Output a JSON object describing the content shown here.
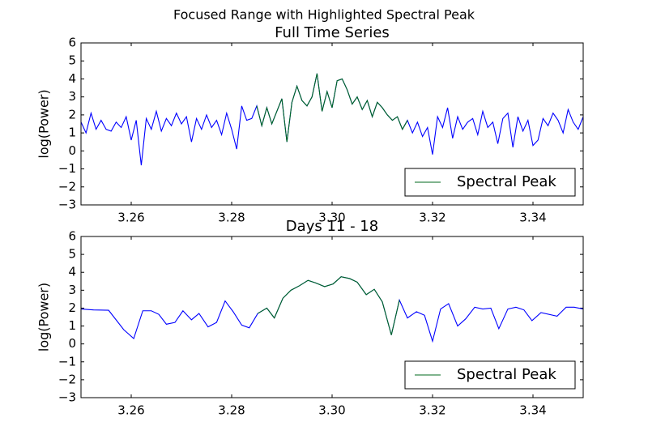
{
  "title": "Focused Range with Highlighted Spectral Peak",
  "chart_data": [
    {
      "type": "line",
      "title": "Full Time Series",
      "y_label": "log(Power)",
      "x": [
        3.25,
        3.251,
        3.252,
        3.253,
        3.254,
        3.255,
        3.256,
        3.257,
        3.258,
        3.259,
        3.26,
        3.261,
        3.262,
        3.263,
        3.264,
        3.265,
        3.266,
        3.267,
        3.268,
        3.269,
        3.27,
        3.271,
        3.272,
        3.273,
        3.274,
        3.275,
        3.276,
        3.277,
        3.278,
        3.279,
        3.28,
        3.281,
        3.282,
        3.283,
        3.284,
        3.285,
        3.286,
        3.287,
        3.288,
        3.289,
        3.29,
        3.291,
        3.292,
        3.293,
        3.294,
        3.295,
        3.296,
        3.297,
        3.298,
        3.299,
        3.3,
        3.301,
        3.302,
        3.303,
        3.304,
        3.305,
        3.306,
        3.307,
        3.308,
        3.309,
        3.31,
        3.311,
        3.312,
        3.313,
        3.314,
        3.315,
        3.316,
        3.317,
        3.318,
        3.319,
        3.32,
        3.321,
        3.322,
        3.323,
        3.324,
        3.325,
        3.326,
        3.327,
        3.328,
        3.329,
        3.33,
        3.331,
        3.332,
        3.333,
        3.334,
        3.335,
        3.336,
        3.337,
        3.338,
        3.339,
        3.34,
        3.341,
        3.342,
        3.343,
        3.344,
        3.345,
        3.346,
        3.347,
        3.348,
        3.349,
        3.35
      ],
      "series": [
        {
          "color": "#0000ff",
          "values": [
            1.6,
            1.0,
            2.1,
            1.2,
            1.7,
            1.2,
            1.1,
            1.6,
            1.3,
            1.9,
            0.6,
            1.7,
            -0.8,
            1.8,
            1.2,
            2.2,
            1.1,
            1.8,
            1.4,
            2.1,
            1.5,
            1.9,
            0.5,
            1.8,
            1.2,
            2.0,
            1.3,
            1.7,
            0.9,
            2.1,
            1.2,
            0.1,
            2.5,
            1.7,
            1.8,
            2.5,
            1.4,
            2.4,
            1.5,
            2.2,
            2.9,
            0.5,
            2.7,
            3.6,
            2.8,
            2.5,
            3.0,
            4.3,
            2.2,
            3.3,
            2.4,
            3.9,
            4.0,
            3.4,
            2.6,
            3.0,
            2.3,
            2.8,
            1.9,
            2.7,
            2.4,
            2.0,
            1.7,
            1.9,
            1.2,
            1.7,
            1.0,
            1.6,
            0.8,
            1.3,
            -0.2,
            1.9,
            1.3,
            2.4,
            0.7,
            1.9,
            1.2,
            1.6,
            1.8,
            0.9,
            2.2,
            1.3,
            1.6,
            0.4,
            1.8,
            2.1,
            0.2,
            1.9,
            1.1,
            1.7,
            0.3,
            0.6,
            1.8,
            1.4,
            2.1,
            1.7,
            1.0,
            2.3,
            1.6,
            1.2,
            1.9
          ]
        },
        {
          "name": "Spectral Peak",
          "color": "#006a1e",
          "values": [
            null,
            null,
            null,
            null,
            null,
            null,
            null,
            null,
            null,
            null,
            null,
            null,
            null,
            null,
            null,
            null,
            null,
            null,
            null,
            null,
            null,
            null,
            null,
            null,
            null,
            null,
            null,
            null,
            null,
            null,
            null,
            null,
            null,
            null,
            null,
            2.5,
            1.4,
            2.4,
            1.5,
            2.2,
            2.9,
            0.5,
            2.7,
            3.6,
            2.8,
            2.5,
            3.0,
            4.3,
            2.2,
            3.3,
            2.4,
            3.9,
            4.0,
            3.4,
            2.6,
            3.0,
            2.3,
            2.8,
            1.9,
            2.7,
            2.4,
            2.0,
            1.7,
            1.9,
            1.2,
            1.7,
            null,
            null,
            null,
            null,
            null,
            null,
            null,
            null,
            null,
            null,
            null,
            null,
            null,
            null,
            null,
            null,
            null,
            null,
            null,
            null,
            null,
            null,
            null,
            null,
            null,
            null,
            null,
            null,
            null,
            null,
            null,
            null,
            null,
            null,
            null
          ]
        }
      ],
      "xlim": [
        3.25,
        3.35
      ],
      "ylim": [
        -3,
        6
      ],
      "xticks": [
        3.26,
        3.28,
        {
          "value": 3.3,
          "label": "3.30"
        },
        3.32,
        3.34
      ],
      "yticks": [
        {
          "value": -3,
          "label": "−3"
        },
        {
          "value": -2,
          "label": "−2"
        },
        {
          "value": -1,
          "label": "−1"
        },
        0,
        1,
        2,
        3,
        4,
        5,
        6
      ],
      "grid": false,
      "legend": "lower right"
    },
    {
      "type": "line",
      "title": "Days 11 - 18",
      "y_label": "log(Power)",
      "x": [
        3.25,
        3.2525,
        3.2555,
        3.2585,
        3.2605,
        3.2623,
        3.264,
        3.2655,
        3.267,
        3.2687,
        3.2703,
        3.272,
        3.2735,
        3.2753,
        3.277,
        3.2787,
        3.2803,
        3.282,
        3.2835,
        3.2852,
        3.287,
        3.2885,
        3.2902,
        3.2918,
        3.2935,
        3.2952,
        3.2968,
        3.2985,
        3.3002,
        3.3018,
        3.3035,
        3.305,
        3.3068,
        3.3084,
        3.31,
        3.3118,
        3.3134,
        3.315,
        3.3168,
        3.3184,
        3.32,
        3.3216,
        3.3232,
        3.325,
        3.3266,
        3.3284,
        3.33,
        3.3316,
        3.3332,
        3.335,
        3.3366,
        3.3382,
        3.3398,
        3.3416,
        3.3448,
        3.3466,
        3.3482,
        3.35
      ],
      "series": [
        {
          "color": "#0000ff",
          "values": [
            1.95,
            1.9,
            1.88,
            0.8,
            0.3,
            1.85,
            1.85,
            1.65,
            1.1,
            1.2,
            1.85,
            1.35,
            1.7,
            0.95,
            1.2,
            2.4,
            1.8,
            1.05,
            0.9,
            1.7,
            2.0,
            1.45,
            2.55,
            3.0,
            3.25,
            3.55,
            3.4,
            3.2,
            3.35,
            3.75,
            3.65,
            3.45,
            2.75,
            3.05,
            2.35,
            0.5,
            2.45,
            1.45,
            1.8,
            1.6,
            0.15,
            1.95,
            2.25,
            1.0,
            1.4,
            2.05,
            1.95,
            2.0,
            0.85,
            1.95,
            2.05,
            1.9,
            1.3,
            1.75,
            1.55,
            2.05,
            2.05,
            1.95
          ]
        },
        {
          "name": "Spectral Peak",
          "color": "#006a1e",
          "values": [
            null,
            null,
            null,
            null,
            null,
            null,
            null,
            null,
            null,
            null,
            null,
            null,
            null,
            null,
            null,
            null,
            null,
            null,
            null,
            1.7,
            2.0,
            1.45,
            2.55,
            3.0,
            3.25,
            3.55,
            3.4,
            3.2,
            3.35,
            3.75,
            3.65,
            3.45,
            2.75,
            3.05,
            2.35,
            0.5,
            2.45,
            null,
            null,
            null,
            null,
            null,
            null,
            null,
            null,
            null,
            null,
            null,
            null,
            null,
            null,
            null,
            null,
            null,
            null,
            null,
            null,
            null
          ]
        }
      ],
      "xlim": [
        3.25,
        3.35
      ],
      "ylim": [
        -3,
        6
      ],
      "xticks": [
        3.26,
        3.28,
        {
          "value": 3.3,
          "label": "3.30"
        },
        3.32,
        3.34
      ],
      "yticks": [
        {
          "value": -3,
          "label": "−3"
        },
        {
          "value": -2,
          "label": "−2"
        },
        {
          "value": -1,
          "label": "−1"
        },
        0,
        1,
        2,
        3,
        4,
        5,
        6
      ],
      "grid": false,
      "legend": "lower right"
    }
  ]
}
